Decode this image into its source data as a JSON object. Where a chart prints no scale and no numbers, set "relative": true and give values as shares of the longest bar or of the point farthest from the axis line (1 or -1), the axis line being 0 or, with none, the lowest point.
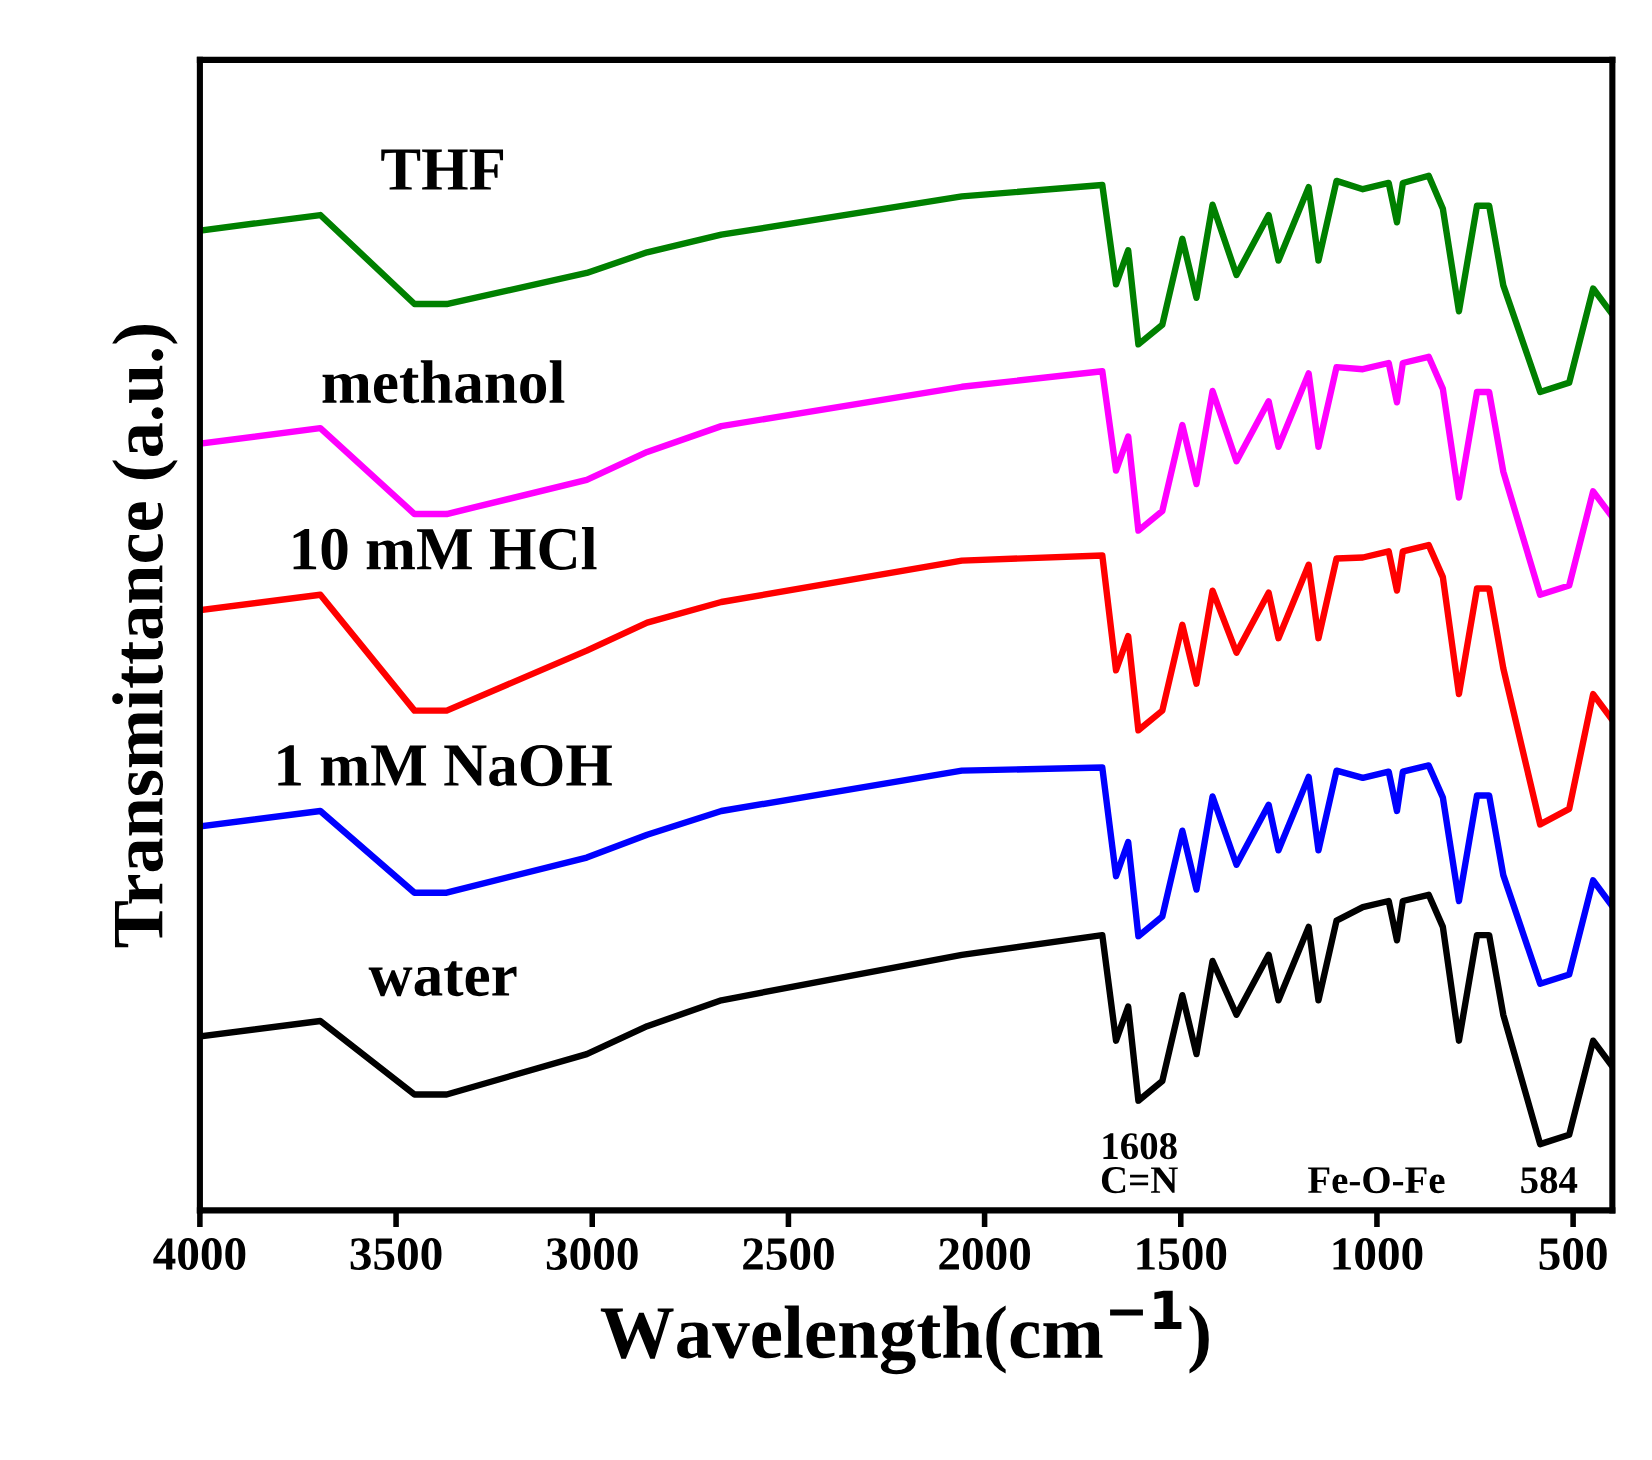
{
  "chart_data": {
    "type": "line",
    "relative": true,
    "xlabel": "Wavelength(cm$^{−1}$)",
    "ylabel": "Transmittance (a.u.)",
    "xlim": [
      4000,
      400
    ],
    "xticks": [
      4000,
      3500,
      3000,
      2500,
      2000,
      1500,
      1000,
      500
    ],
    "tick_labels": "x",
    "grid": false,
    "legend": false,
    "marker": "none",
    "line_style": "solid",
    "x": [
      4000,
      3693,
      3453,
      3371,
      3014,
      2860,
      2671,
      2058,
      1700,
      1665,
      1634,
      1608,
      1547,
      1496,
      1460,
      1419,
      1358,
      1276,
      1251,
      1174,
      1149,
      1103,
      1036,
      970,
      949,
      934,
      868,
      832,
      791,
      745,
      714,
      678,
      584,
      510,
      449,
      400
    ],
    "annotations": [
      "1608\nC=N",
      "Fe-O-Fe",
      "584"
    ],
    "series": [
      {
        "name": "water",
        "color": "#000000",
        "values": [
          0.168,
          0.183,
          0.112,
          0.112,
          0.151,
          0.178,
          0.203,
          0.247,
          0.266,
          0.164,
          0.197,
          0.106,
          0.125,
          0.208,
          0.151,
          0.241,
          0.189,
          0.247,
          0.203,
          0.274,
          0.203,
          0.28,
          0.293,
          0.299,
          0.261,
          0.299,
          0.305,
          0.274,
          0.164,
          0.266,
          0.266,
          0.189,
          0.064,
          0.073,
          0.164,
          0.139
        ]
      },
      {
        "name": "1 mM NaOH",
        "color": "#0000ff",
        "values": [
          0.371,
          0.386,
          0.307,
          0.307,
          0.341,
          0.363,
          0.386,
          0.425,
          0.428,
          0.323,
          0.356,
          0.265,
          0.284,
          0.367,
          0.31,
          0.4,
          0.334,
          0.392,
          0.348,
          0.419,
          0.348,
          0.425,
          0.418,
          0.424,
          0.386,
          0.424,
          0.43,
          0.399,
          0.299,
          0.401,
          0.401,
          0.324,
          0.219,
          0.228,
          0.319,
          0.294
        ]
      },
      {
        "name": "10 mM HCl",
        "color": "#ff0000",
        "values": [
          0.58,
          0.595,
          0.483,
          0.483,
          0.541,
          0.568,
          0.588,
          0.628,
          0.633,
          0.522,
          0.555,
          0.464,
          0.483,
          0.566,
          0.509,
          0.599,
          0.539,
          0.597,
          0.553,
          0.624,
          0.553,
          0.63,
          0.631,
          0.637,
          0.599,
          0.637,
          0.643,
          0.612,
          0.499,
          0.601,
          0.601,
          0.524,
          0.373,
          0.388,
          0.499,
          0.474
        ]
      },
      {
        "name": "methanol",
        "color": "#ff00ff",
        "values": [
          0.741,
          0.756,
          0.673,
          0.673,
          0.706,
          0.733,
          0.758,
          0.796,
          0.811,
          0.715,
          0.748,
          0.657,
          0.676,
          0.759,
          0.702,
          0.792,
          0.724,
          0.782,
          0.738,
          0.809,
          0.738,
          0.815,
          0.813,
          0.819,
          0.781,
          0.819,
          0.825,
          0.794,
          0.689,
          0.791,
          0.791,
          0.714,
          0.595,
          0.604,
          0.695,
          0.67
        ]
      },
      {
        "name": "THF",
        "color": "#008000",
        "values": [
          0.947,
          0.962,
          0.876,
          0.876,
          0.906,
          0.926,
          0.943,
          0.98,
          0.991,
          0.895,
          0.928,
          0.837,
          0.856,
          0.939,
          0.882,
          0.972,
          0.904,
          0.962,
          0.918,
          0.989,
          0.918,
          0.995,
          0.987,
          0.993,
          0.955,
          0.993,
          1.0,
          0.968,
          0.869,
          0.971,
          0.971,
          0.894,
          0.791,
          0.8,
          0.891,
          0.866
        ]
      }
    ]
  }
}
